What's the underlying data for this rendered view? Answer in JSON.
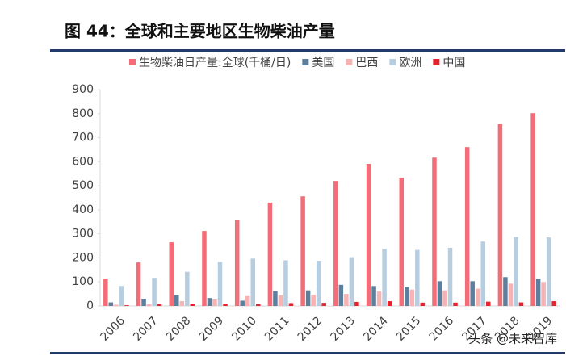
{
  "chart_data": {
    "type": "bar",
    "title": "图 44：全球和主要地区生物柴油产量",
    "watermark": "头条 @未来智库",
    "categories": [
      "2006",
      "2007",
      "2008",
      "2009",
      "2010",
      "2011",
      "2012",
      "2013",
      "2014",
      "2015",
      "2016",
      "2017",
      "2018",
      "2019"
    ],
    "series": [
      {
        "name": "生物柴油日产量:全球(千桶/日)",
        "color": "#f26d77",
        "values": [
          114,
          181,
          265,
          312,
          359,
          430,
          456,
          520,
          591,
          534,
          617,
          661,
          758,
          802
        ]
      },
      {
        "name": "美国",
        "color": "#5d7f9e",
        "values": [
          15,
          30,
          45,
          33,
          22,
          62,
          65,
          88,
          83,
          80,
          103,
          103,
          120,
          113
        ]
      },
      {
        "name": "巴西",
        "color": "#f5b3b3",
        "values": [
          5,
          7,
          20,
          27,
          41,
          45,
          47,
          50,
          60,
          68,
          65,
          72,
          93,
          100
        ]
      },
      {
        "name": "欧洲",
        "color": "#b7cde0",
        "values": [
          83,
          117,
          142,
          183,
          197,
          190,
          188,
          203,
          237,
          233,
          242,
          268,
          287,
          285
        ]
      },
      {
        "name": "中国",
        "color": "#e3242b",
        "values": [
          3,
          7,
          8,
          8,
          8,
          12,
          13,
          17,
          20,
          14,
          14,
          18,
          15,
          20
        ]
      }
    ],
    "ylim": [
      0,
      900
    ],
    "yticks": [
      0,
      100,
      200,
      300,
      400,
      500,
      600,
      700,
      800,
      900
    ]
  }
}
